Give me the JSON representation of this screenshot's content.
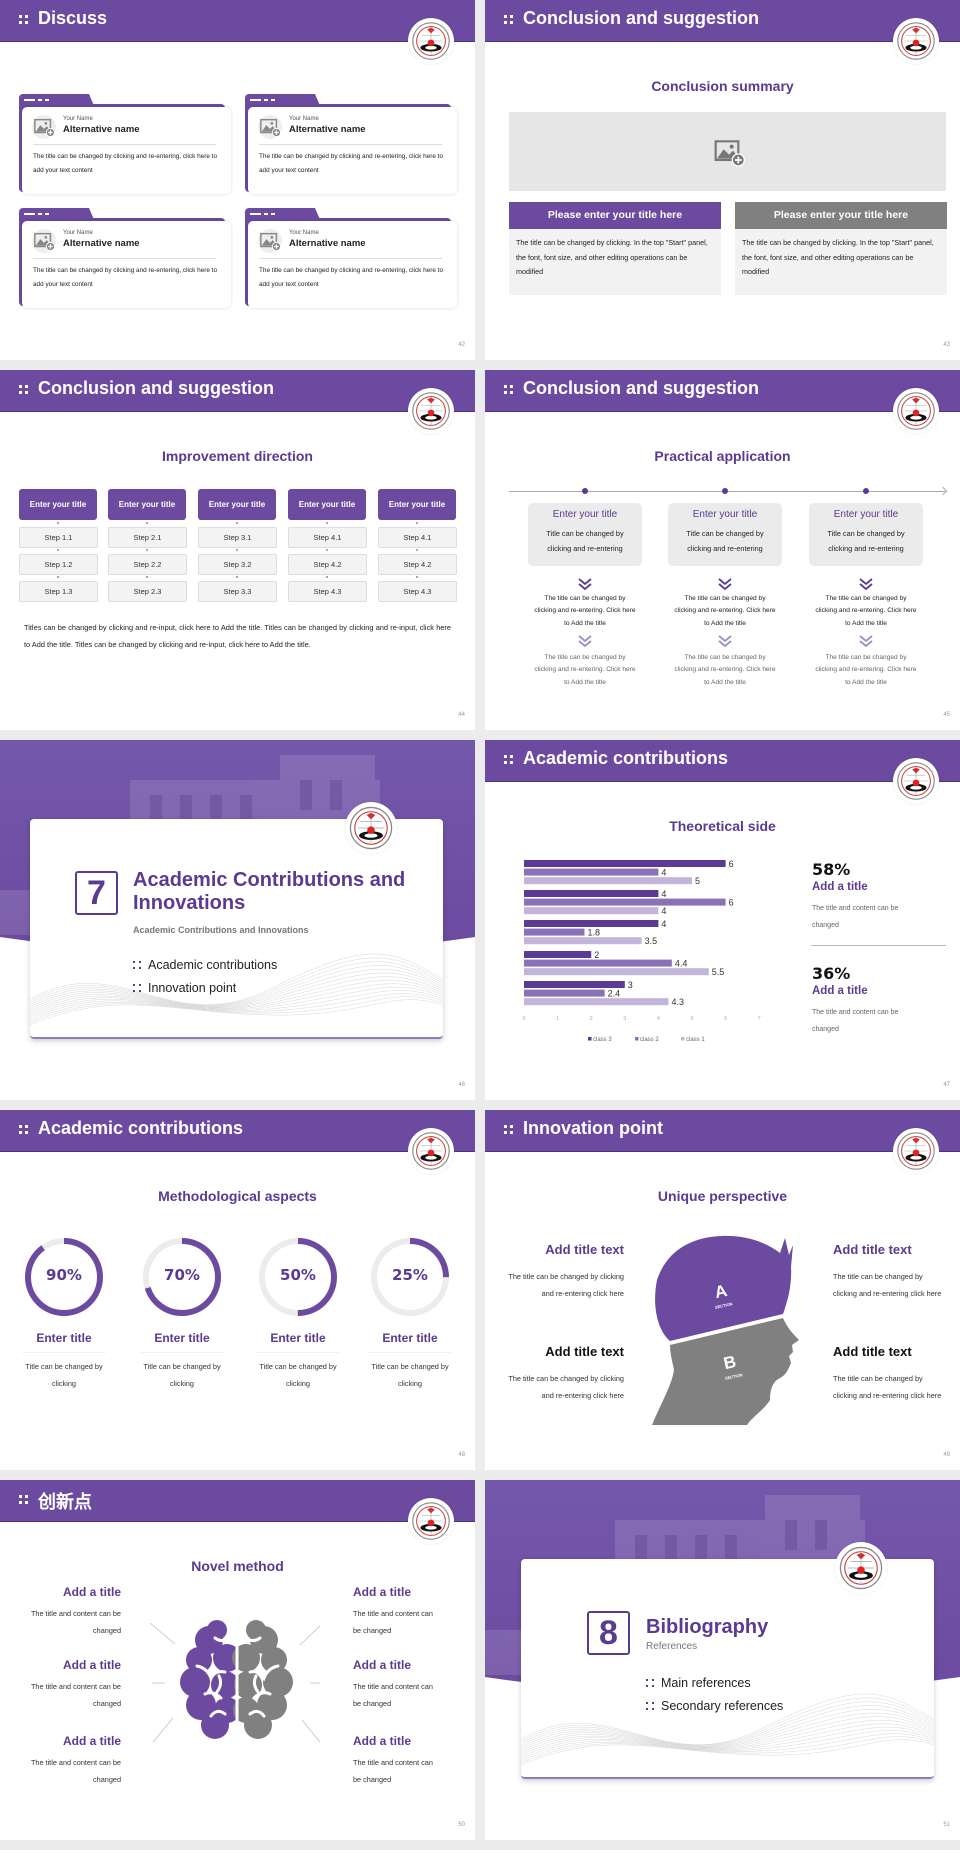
{
  "colors": {
    "primary": "#6b4aa0",
    "heading": "#5a3a92",
    "gray": "#808080",
    "light_gray": "#f2f2f2"
  },
  "slides": [
    {
      "page": "42",
      "header": "Discuss",
      "cards": [
        {
          "label": "Your Name",
          "name": "Alternative name",
          "text": "The title can be changed by clicking and re-entering, click here to add your text content",
          "icon": "image-add-icon"
        },
        {
          "label": "Your Name",
          "name": "Alternative name",
          "text": "The title can be changed by clicking and re-entering, click here to add your text content",
          "icon": "image-add-icon"
        },
        {
          "label": "Your Name",
          "name": "Alternative name",
          "text": "The title can be changed by clicking and re-entering, click here to add your text content",
          "icon": "image-add-icon"
        },
        {
          "label": "Your Name",
          "name": "Alternative name",
          "text": "The title can be changed by clicking and re-entering, click here to add your text content",
          "icon": "image-add-icon"
        }
      ]
    },
    {
      "page": "43",
      "header": "Conclusion and suggestion",
      "subtitle": "Conclusion summary",
      "panels": [
        {
          "title": "Please enter your title here",
          "text": "The title can be changed by clicking. In the top \"Start\" panel, the font, font size, and other editing operations can be modified",
          "color": "#6b4aa0"
        },
        {
          "title": "Please enter your title here",
          "text": "The title can be changed by clicking. In the top \"Start\" panel, the font, font size, and other editing operations can be modified",
          "color": "#808080"
        }
      ]
    },
    {
      "page": "44",
      "header": "Conclusion and suggestion",
      "subtitle": "Improvement direction",
      "columns": [
        {
          "title": "Enter your title",
          "steps": [
            "Step 1.1",
            "Step 1.2",
            "Step 1.3"
          ]
        },
        {
          "title": "Enter your title",
          "steps": [
            "Step 2.1",
            "Step 2.2",
            "Step 2.3"
          ]
        },
        {
          "title": "Enter your title",
          "steps": [
            "Step 3.1",
            "Step 3.2",
            "Step 3.3"
          ]
        },
        {
          "title": "Enter your title",
          "steps": [
            "Step 4.1",
            "Step 4.2",
            "Step 4.3"
          ]
        },
        {
          "title": "Enter your title",
          "steps": [
            "Step 4.1",
            "Step 4.2",
            "Step 4.3"
          ]
        }
      ],
      "paragraph": "Titles can be changed by clicking and re-input, click here to Add the title. Titles can be changed by clicking and re-input, click here to Add the title. Titles can be changed by clicking and re-input, click here to Add the title."
    },
    {
      "page": "45",
      "header": "Conclusion and suggestion",
      "subtitle": "Practical application",
      "columns": [
        {
          "title": "Enter your title",
          "text": "Title can be changed by clicking and re-entering",
          "detail1": "The title can be changed by clicking and re-entering. Click here to Add the title",
          "detail2": "The title can be changed by clicking and re-entering. Click here to Add the title"
        },
        {
          "title": "Enter your title",
          "text": "Title can be changed by clicking and re-entering",
          "detail1": "The title can be changed by clicking and re-entering. Click here to Add the title",
          "detail2": "The title can be changed by clicking and re-entering. Click here to Add the title"
        },
        {
          "title": "Enter your title",
          "text": "Title can be changed by clicking and re-entering",
          "detail1": "The title can be changed by clicking and re-entering. Click here to Add the title",
          "detail2": "The title can be changed by clicking and re-entering. Click here to Add the title"
        }
      ]
    },
    {
      "page": "46",
      "number": "7",
      "title": "Academic Contributions and Innovations",
      "subtitle": "Academic Contributions and Innovations",
      "bullets": [
        "Academic contributions",
        "Innovation point"
      ]
    },
    {
      "page": "47",
      "header": "Academic contributions",
      "subtitle": "Theoretical side",
      "stats": [
        {
          "value": "58%",
          "title": "Add a title",
          "text": "The title and content can be changed"
        },
        {
          "value": "36%",
          "title": "Add a title",
          "text": "The title and content can be changed"
        }
      ]
    },
    {
      "page": "48",
      "header": "Academic contributions",
      "subtitle": "Methodological aspects",
      "rings": [
        {
          "percent": 90,
          "label": "90%",
          "title": "Enter title",
          "text": "Title can be changed by clicking"
        },
        {
          "percent": 70,
          "label": "70%",
          "title": "Enter title",
          "text": "Title can be changed by clicking"
        },
        {
          "percent": 50,
          "label": "50%",
          "title": "Enter title",
          "text": "Title can be changed by clicking"
        },
        {
          "percent": 25,
          "label": "25%",
          "title": "Enter title",
          "text": "Title can be changed by clicking"
        }
      ]
    },
    {
      "page": "49",
      "header": "Innovation point",
      "subtitle": "Unique perspective",
      "head": {
        "a": "A",
        "b": "B",
        "section": "SECTION"
      },
      "items": [
        {
          "title": "Add title text",
          "text": "The title can be changed by clicking and re-entering click here",
          "color": "#5a3a92"
        },
        {
          "title": "Add title text",
          "text": "The title can be changed by clicking and re-entering click here",
          "color": "#111111"
        },
        {
          "title": "Add title text",
          "text": "The title can be changed by clicking and re-entering click here",
          "color": "#5a3a92"
        },
        {
          "title": "Add title text",
          "text": "The title can be changed by clicking and re-entering click here",
          "color": "#111111"
        }
      ]
    },
    {
      "page": "50",
      "header": "创新点",
      "subtitle": "Novel method",
      "items": [
        {
          "title": "Add a title",
          "text": "The title and content can be changed"
        },
        {
          "title": "Add a title",
          "text": "The title and content can be changed"
        },
        {
          "title": "Add a title",
          "text": "The title and content can be changed"
        },
        {
          "title": "Add a title",
          "text": "The title and content can be changed"
        },
        {
          "title": "Add a title",
          "text": "The title and content can be changed"
        },
        {
          "title": "Add a title",
          "text": "The title and content can be changed"
        }
      ]
    },
    {
      "page": "51",
      "number": "8",
      "title": "Bibliography",
      "subtitle": "References",
      "bullets": [
        "Main references",
        "Secondary references"
      ]
    }
  ],
  "chart_data": {
    "type": "bar",
    "orientation": "horizontal",
    "title": "",
    "xlim": [
      0,
      7
    ],
    "xticks": [
      "0",
      "1",
      "2",
      "3",
      "4",
      "5",
      "6",
      "7"
    ],
    "grid": false,
    "legend": "bottom",
    "series": [
      {
        "name": "class 3",
        "values": [
          6,
          4,
          4,
          2,
          3
        ],
        "labels": [
          "6",
          "4",
          "4",
          "2",
          "3"
        ],
        "color": "#5b3a94"
      },
      {
        "name": "class 2",
        "values": [
          4,
          6,
          1.8,
          4.4,
          2.4
        ],
        "labels": [
          "4",
          "6",
          "1.8",
          "4.4",
          "2.4"
        ],
        "color": "#8a72b8"
      },
      {
        "name": "class 1",
        "values": [
          5,
          4,
          3.5,
          5.5,
          4.3
        ],
        "labels": [
          "5",
          "4",
          "3.5",
          "5.5",
          "4.3"
        ],
        "color": "#c2b4da"
      }
    ]
  }
}
